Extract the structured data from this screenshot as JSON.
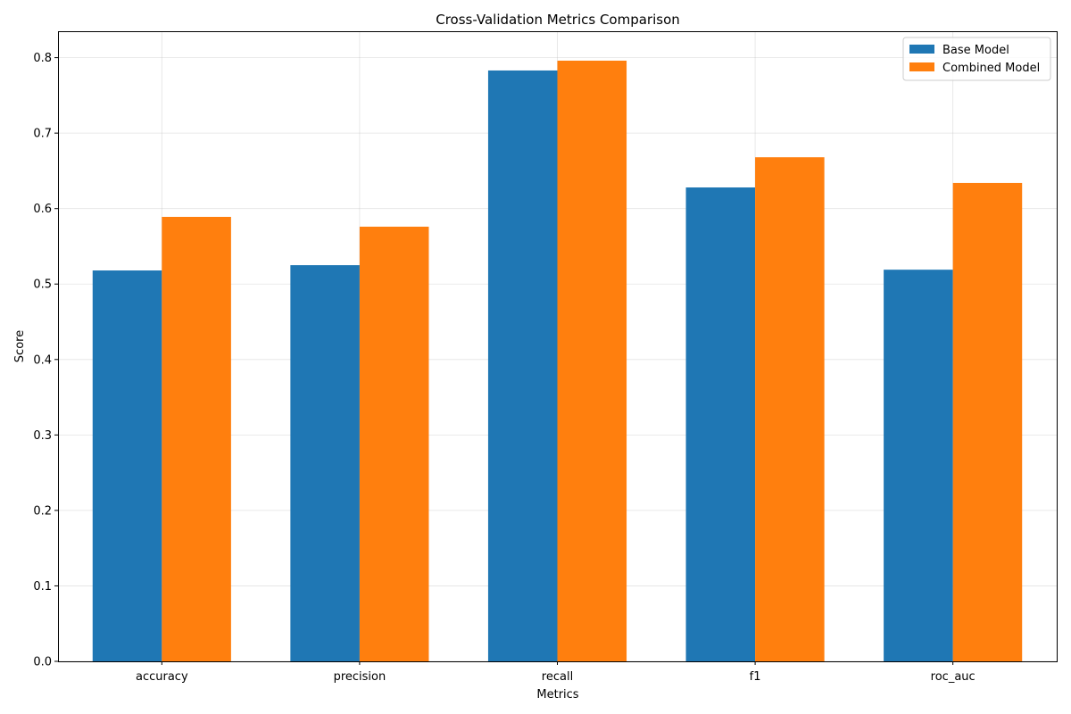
{
  "chart_data": {
    "type": "bar",
    "title": "Cross-Validation Metrics Comparison",
    "xlabel": "Metrics",
    "ylabel": "Score",
    "categories": [
      "accuracy",
      "precision",
      "recall",
      "f1",
      "roc_auc"
    ],
    "series": [
      {
        "name": "Base Model",
        "color": "#1f77b4",
        "values": [
          0.518,
          0.525,
          0.783,
          0.628,
          0.519
        ]
      },
      {
        "name": "Combined Model",
        "color": "#ff7f0e",
        "values": [
          0.589,
          0.576,
          0.796,
          0.668,
          0.634
        ]
      }
    ],
    "ylim": [
      0,
      0.835
    ],
    "yticks": [
      "0.0",
      "0.1",
      "0.2",
      "0.3",
      "0.4",
      "0.5",
      "0.6",
      "0.7",
      "0.8"
    ],
    "grid": true,
    "legend_position": "top-right"
  }
}
